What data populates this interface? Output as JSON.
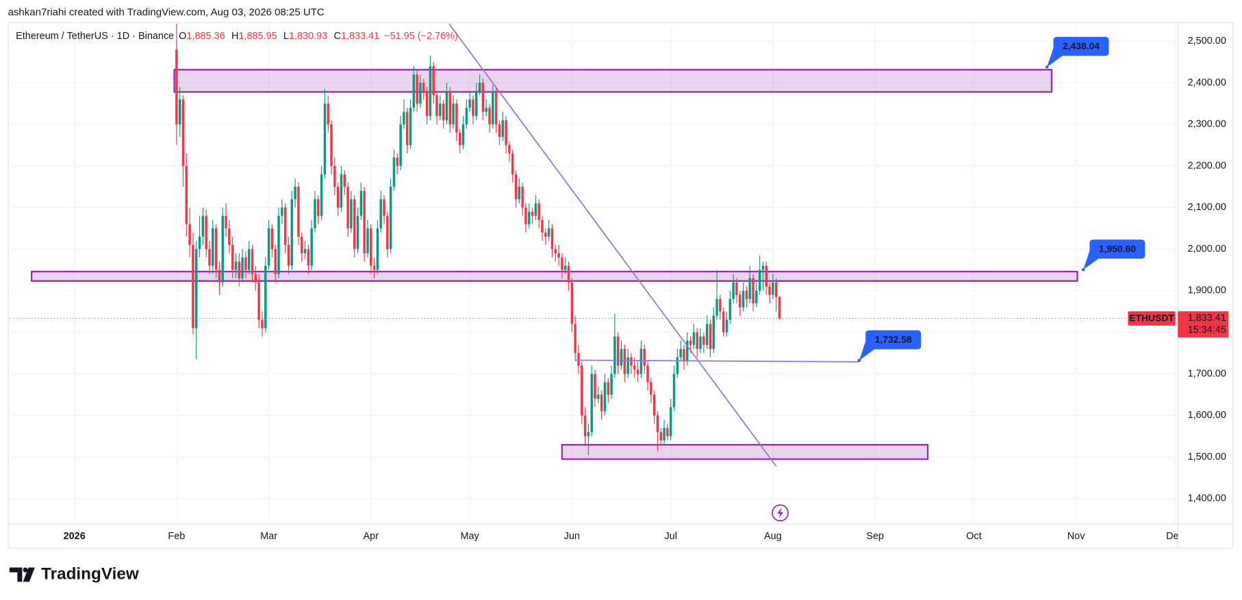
{
  "header": "ashkan7riahi created with TradingView.com, Aug 03, 2026 08:25 UTC",
  "footer": "TradingView",
  "chart_data": {
    "type": "candlestick",
    "legend": {
      "symbol": "Ethereum / TetherUS · 1D · Binance",
      "ohlc": [
        {
          "key": "O",
          "label": "1,885.36"
        },
        {
          "key": "H",
          "label": "1,885.95"
        },
        {
          "key": "L",
          "label": "1,830.93"
        },
        {
          "key": "C",
          "label": "1,833.41"
        }
      ],
      "change": "−51.95 (−2.76%)"
    },
    "up_color": "#089981",
    "down_color": "#f23645",
    "grid": true,
    "categories": [
      null,
      null,
      null,
      null,
      null,
      null,
      null,
      null,
      null,
      null,
      null,
      null,
      null,
      null,
      null,
      null,
      null,
      null,
      null,
      null,
      null,
      null,
      null,
      null,
      null,
      null,
      null,
      null,
      null,
      null,
      null,
      null,
      null,
      null,
      null,
      null,
      null,
      null,
      null,
      null,
      null,
      null,
      null,
      null,
      null,
      null,
      null,
      null,
      null,
      null,
      null,
      null,
      null,
      null,
      null,
      null,
      null,
      null,
      null,
      null,
      null,
      null,
      null,
      null,
      null,
      null,
      null,
      null,
      null,
      null,
      null,
      null,
      null,
      null,
      null,
      null,
      null,
      null,
      null,
      null,
      null,
      null,
      null,
      null,
      null,
      null,
      null,
      null,
      null,
      null,
      null,
      null,
      null,
      null,
      null,
      null,
      null,
      null,
      null,
      null,
      null,
      null,
      null,
      null,
      null,
      null,
      null,
      null,
      null,
      null,
      null,
      null,
      null,
      null,
      null,
      null,
      null,
      null,
      null,
      null,
      null,
      null,
      null,
      null,
      null,
      null,
      null,
      null,
      null,
      null,
      null,
      null,
      null,
      null,
      null,
      null,
      null,
      null,
      null,
      null,
      null,
      null,
      null,
      null,
      null,
      null,
      null,
      null,
      null,
      null,
      null,
      null,
      null,
      null,
      null,
      null,
      null,
      null,
      null,
      null,
      null,
      null,
      null,
      null,
      null,
      null,
      null,
      null,
      null,
      null,
      null,
      null,
      null,
      null,
      null,
      null,
      null,
      null,
      null,
      null,
      null,
      null,
      null,
      null
    ],
    "ohlc": [
      [
        2480,
        2560,
        2250,
        2300
      ],
      [
        2300,
        2390,
        2270,
        2360
      ],
      [
        2360,
        2370,
        2150,
        2200
      ],
      [
        2200,
        2230,
        2030,
        2060
      ],
      [
        2060,
        2100,
        1980,
        2010
      ],
      [
        2010,
        2040,
        1795,
        1810
      ],
      [
        1810,
        2020,
        1735,
        2000
      ],
      [
        2000,
        2080,
        1980,
        2030
      ],
      [
        2030,
        2100,
        2010,
        2080
      ],
      [
        2080,
        2095,
        1980,
        2000
      ],
      [
        2000,
        2020,
        1940,
        1960
      ],
      [
        1960,
        2070,
        1940,
        2050
      ],
      [
        2050,
        2060,
        1930,
        1950
      ],
      [
        1950,
        1970,
        1890,
        1920
      ],
      [
        1920,
        2100,
        1910,
        2080
      ],
      [
        2080,
        2110,
        2030,
        2050
      ],
      [
        2050,
        2070,
        1990,
        2010
      ],
      [
        2010,
        2030,
        1930,
        1950
      ],
      [
        1950,
        1990,
        1930,
        1970
      ],
      [
        1970,
        1990,
        1910,
        1930
      ],
      [
        1930,
        2000,
        1920,
        1980
      ],
      [
        1980,
        1995,
        1930,
        1950
      ],
      [
        1950,
        2020,
        1940,
        2000
      ],
      [
        2000,
        2010,
        1920,
        1940
      ],
      [
        1940,
        1960,
        1900,
        1920
      ],
      [
        1920,
        1940,
        1810,
        1830
      ],
      [
        1830,
        1850,
        1790,
        1810
      ],
      [
        1810,
        1980,
        1800,
        1960
      ],
      [
        1960,
        2070,
        1950,
        2050
      ],
      [
        2050,
        2060,
        1980,
        2000
      ],
      [
        2000,
        2010,
        1920,
        1940
      ],
      [
        1940,
        2100,
        1930,
        2080
      ],
      [
        2080,
        2120,
        2060,
        2100
      ],
      [
        2100,
        2110,
        1990,
        2010
      ],
      [
        2010,
        2030,
        1940,
        1960
      ],
      [
        1960,
        2140,
        1950,
        2120
      ],
      [
        2120,
        2170,
        2100,
        2150
      ],
      [
        2150,
        2160,
        2010,
        2030
      ],
      [
        2030,
        2040,
        1970,
        1990
      ],
      [
        1990,
        2020,
        1975,
        2000
      ],
      [
        2000,
        2010,
        1940,
        1960
      ],
      [
        1960,
        2070,
        1950,
        2050
      ],
      [
        2050,
        2140,
        2040,
        2120
      ],
      [
        2120,
        2130,
        2060,
        2080
      ],
      [
        2080,
        2200,
        2070,
        2180
      ],
      [
        2180,
        2385,
        2170,
        2350
      ],
      [
        2350,
        2370,
        2280,
        2300
      ],
      [
        2300,
        2310,
        2180,
        2200
      ],
      [
        2200,
        2220,
        2130,
        2150
      ],
      [
        2150,
        2160,
        2080,
        2100
      ],
      [
        2100,
        2200,
        2090,
        2180
      ],
      [
        2180,
        2190,
        2130,
        2150
      ],
      [
        2150,
        2160,
        2030,
        2050
      ],
      [
        2050,
        2140,
        2040,
        2120
      ],
      [
        2120,
        2130,
        1980,
        2000
      ],
      [
        2000,
        2100,
        1990,
        2080
      ],
      [
        2080,
        2160,
        2070,
        2140
      ],
      [
        2140,
        2150,
        1970,
        1990
      ],
      [
        1990,
        2070,
        1980,
        2050
      ],
      [
        2050,
        2060,
        1940,
        1960
      ],
      [
        1960,
        1980,
        1930,
        1950
      ],
      [
        1950,
        2070,
        1940,
        2050
      ],
      [
        2050,
        2140,
        2040,
        2120
      ],
      [
        2120,
        2130,
        2060,
        2080
      ],
      [
        2080,
        2090,
        1980,
        2000
      ],
      [
        2000,
        2170,
        1990,
        2150
      ],
      [
        2150,
        2240,
        2140,
        2220
      ],
      [
        2220,
        2230,
        2180,
        2200
      ],
      [
        2200,
        2320,
        2190,
        2300
      ],
      [
        2300,
        2360,
        2290,
        2330
      ],
      [
        2330,
        2340,
        2230,
        2250
      ],
      [
        2250,
        2360,
        2240,
        2340
      ],
      [
        2340,
        2440,
        2330,
        2420
      ],
      [
        2420,
        2430,
        2330,
        2350
      ],
      [
        2350,
        2420,
        2340,
        2400
      ],
      [
        2400,
        2410,
        2360,
        2380
      ],
      [
        2380,
        2390,
        2300,
        2320
      ],
      [
        2320,
        2465,
        2310,
        2440
      ],
      [
        2440,
        2450,
        2350,
        2370
      ],
      [
        2370,
        2380,
        2300,
        2320
      ],
      [
        2320,
        2370,
        2310,
        2350
      ],
      [
        2350,
        2360,
        2290,
        2310
      ],
      [
        2310,
        2400,
        2300,
        2380
      ],
      [
        2380,
        2390,
        2280,
        2300
      ],
      [
        2300,
        2370,
        2290,
        2350
      ],
      [
        2350,
        2360,
        2260,
        2280
      ],
      [
        2280,
        2290,
        2230,
        2250
      ],
      [
        2250,
        2320,
        2240,
        2300
      ],
      [
        2300,
        2360,
        2290,
        2340
      ],
      [
        2340,
        2380,
        2330,
        2360
      ],
      [
        2360,
        2370,
        2300,
        2320
      ],
      [
        2320,
        2400,
        2310,
        2380
      ],
      [
        2380,
        2420,
        2370,
        2400
      ],
      [
        2400,
        2410,
        2310,
        2330
      ],
      [
        2330,
        2360,
        2320,
        2340
      ],
      [
        2340,
        2350,
        2280,
        2300
      ],
      [
        2300,
        2395,
        2290,
        2380
      ],
      [
        2380,
        2390,
        2280,
        2300
      ],
      [
        2300,
        2310,
        2250,
        2270
      ],
      [
        2270,
        2330,
        2260,
        2310
      ],
      [
        2310,
        2320,
        2230,
        2250
      ],
      [
        2250,
        2260,
        2210,
        2230
      ],
      [
        2230,
        2240,
        2160,
        2180
      ],
      [
        2180,
        2190,
        2100,
        2120
      ],
      [
        2120,
        2170,
        2110,
        2150
      ],
      [
        2150,
        2160,
        2080,
        2100
      ],
      [
        2100,
        2110,
        2040,
        2060
      ],
      [
        2060,
        2110,
        2050,
        2090
      ],
      [
        2090,
        2100,
        2060,
        2080
      ],
      [
        2080,
        2130,
        2070,
        2110
      ],
      [
        2110,
        2120,
        2050,
        2070
      ],
      [
        2070,
        2080,
        2020,
        2040
      ],
      [
        2040,
        2050,
        2010,
        2030
      ],
      [
        2030,
        2070,
        2020,
        2050
      ],
      [
        2050,
        2060,
        1980,
        2000
      ],
      [
        2000,
        2010,
        1970,
        1990
      ],
      [
        1990,
        2010,
        1960,
        1980
      ],
      [
        1980,
        1990,
        1930,
        1950
      ],
      [
        1950,
        1980,
        1940,
        1960
      ],
      [
        1960,
        1970,
        1900,
        1920
      ],
      [
        1920,
        1930,
        1800,
        1820
      ],
      [
        1820,
        1840,
        1730,
        1750
      ],
      [
        1750,
        1770,
        1700,
        1720
      ],
      [
        1720,
        1730,
        1580,
        1600
      ],
      [
        1600,
        1620,
        1530,
        1550
      ],
      [
        1550,
        1580,
        1505,
        1560
      ],
      [
        1560,
        1720,
        1550,
        1700
      ],
      [
        1700,
        1710,
        1620,
        1640
      ],
      [
        1640,
        1670,
        1630,
        1650
      ],
      [
        1650,
        1660,
        1590,
        1610
      ],
      [
        1610,
        1700,
        1600,
        1680
      ],
      [
        1680,
        1690,
        1630,
        1650
      ],
      [
        1650,
        1720,
        1640,
        1700
      ],
      [
        1700,
        1845,
        1690,
        1790
      ],
      [
        1790,
        1800,
        1700,
        1720
      ],
      [
        1720,
        1780,
        1710,
        1760
      ],
      [
        1760,
        1770,
        1680,
        1700
      ],
      [
        1700,
        1760,
        1690,
        1740
      ],
      [
        1740,
        1750,
        1700,
        1720
      ],
      [
        1720,
        1740,
        1690,
        1710
      ],
      [
        1710,
        1730,
        1680,
        1700
      ],
      [
        1700,
        1780,
        1690,
        1760
      ],
      [
        1760,
        1770,
        1700,
        1720
      ],
      [
        1720,
        1730,
        1660,
        1680
      ],
      [
        1680,
        1690,
        1630,
        1650
      ],
      [
        1650,
        1660,
        1580,
        1600
      ],
      [
        1600,
        1610,
        1515,
        1560
      ],
      [
        1560,
        1570,
        1530,
        1540
      ],
      [
        1540,
        1590,
        1530,
        1570
      ],
      [
        1570,
        1580,
        1540,
        1550
      ],
      [
        1550,
        1640,
        1540,
        1620
      ],
      [
        1620,
        1720,
        1610,
        1700
      ],
      [
        1700,
        1760,
        1690,
        1740
      ],
      [
        1740,
        1780,
        1730,
        1760
      ],
      [
        1760,
        1770,
        1710,
        1730
      ],
      [
        1730,
        1800,
        1720,
        1780
      ],
      [
        1780,
        1790,
        1750,
        1770
      ],
      [
        1770,
        1820,
        1760,
        1800
      ],
      [
        1800,
        1810,
        1740,
        1760
      ],
      [
        1760,
        1810,
        1750,
        1790
      ],
      [
        1790,
        1800,
        1750,
        1770
      ],
      [
        1770,
        1840,
        1760,
        1820
      ],
      [
        1820,
        1830,
        1740,
        1760
      ],
      [
        1760,
        1860,
        1750,
        1840
      ],
      [
        1840,
        1950,
        1830,
        1880
      ],
      [
        1880,
        1890,
        1830,
        1850
      ],
      [
        1850,
        1860,
        1790,
        1800
      ],
      [
        1800,
        1850,
        1790,
        1830
      ],
      [
        1830,
        1900,
        1820,
        1880
      ],
      [
        1880,
        1940,
        1870,
        1920
      ],
      [
        1920,
        1930,
        1870,
        1890
      ],
      [
        1890,
        1900,
        1840,
        1860
      ],
      [
        1860,
        1920,
        1850,
        1900
      ],
      [
        1900,
        1910,
        1860,
        1880
      ],
      [
        1880,
        1960,
        1870,
        1930
      ],
      [
        1930,
        1940,
        1850,
        1870
      ],
      [
        1870,
        1920,
        1860,
        1900
      ],
      [
        1900,
        1985,
        1890,
        1950
      ],
      [
        1950,
        1970,
        1900,
        1960
      ],
      [
        1960,
        1970,
        1890,
        1910
      ],
      [
        1910,
        1920,
        1870,
        1890
      ],
      [
        1890,
        1940,
        1880,
        1920
      ],
      [
        1920,
        1930,
        1850,
        1885.36
      ],
      [
        1885.36,
        1885.95,
        1830.93,
        1833.41
      ]
    ],
    "xlim": [
      -50.7,
      303.9
    ],
    "ylim": [
      1339.1,
      2541.9
    ],
    "xticks": [
      {
        "value": -31,
        "label": "2026"
      },
      {
        "value": 0,
        "label": "Feb"
      },
      {
        "value": 28,
        "label": "Mar"
      },
      {
        "value": 59,
        "label": "Apr"
      },
      {
        "value": 89,
        "label": "May"
      },
      {
        "value": 120,
        "label": "Jun"
      },
      {
        "value": 150,
        "label": "Jul"
      },
      {
        "value": 181,
        "label": "Aug"
      },
      {
        "value": 212,
        "label": "Sep"
      },
      {
        "value": 242,
        "label": "Oct"
      },
      {
        "value": 273,
        "label": "Nov"
      },
      {
        "value": 303,
        "label": "Dec"
      }
    ],
    "yticks": [
      {
        "value": 1400,
        "label": "1,400.00"
      },
      {
        "value": 1500,
        "label": "1,500.00"
      },
      {
        "value": 1600,
        "label": "1,600.00"
      },
      {
        "value": 1700,
        "label": "1,700.00"
      },
      {
        "value": 1800,
        "label": "1,800.00"
      },
      {
        "value": 1900,
        "label": "1,900.00"
      },
      {
        "value": 2000,
        "label": "2,000.00"
      },
      {
        "value": 2100,
        "label": "2,100.00"
      },
      {
        "value": 2200,
        "label": "2,200.00"
      },
      {
        "value": 2300,
        "label": "2,300.00"
      },
      {
        "value": 2400,
        "label": "2,400.00"
      },
      {
        "value": 2500,
        "label": "2,500.00"
      }
    ],
    "drawing_color": "#9c27b0",
    "line_color": "#9575cd",
    "label_color": "#2962ff",
    "zones": [
      {
        "x0": -0.7,
        "x1": 265.6,
        "y0": 2378,
        "y1": 2431.5
      },
      {
        "x0": -44,
        "x1": 273.4,
        "y0": 1923.4,
        "y1": 1946
      },
      {
        "x0": 117,
        "x1": 228,
        "y0": 1495,
        "y1": 1529.5
      }
    ],
    "trend_lines": [
      {
        "x0": 82.7,
        "y0": 2542,
        "x1": 182,
        "y1": 1478
      },
      {
        "x0": 121,
        "y0": 1733,
        "x1": 207.2,
        "y1": 1729
      }
    ],
    "price_labels": [
      {
        "x": 264.2,
        "value": 2438.04,
        "label": "2,438.04"
      },
      {
        "x": 275.2,
        "value": 1950.6,
        "label": "1,950.60"
      },
      {
        "x": 207.2,
        "value": 1732.58,
        "label": "1,732.58"
      }
    ],
    "last_price": {
      "symbol": "ETHUSDT",
      "value": 1833.41,
      "label": "1,833.41",
      "countdown": "15:34:45"
    }
  }
}
